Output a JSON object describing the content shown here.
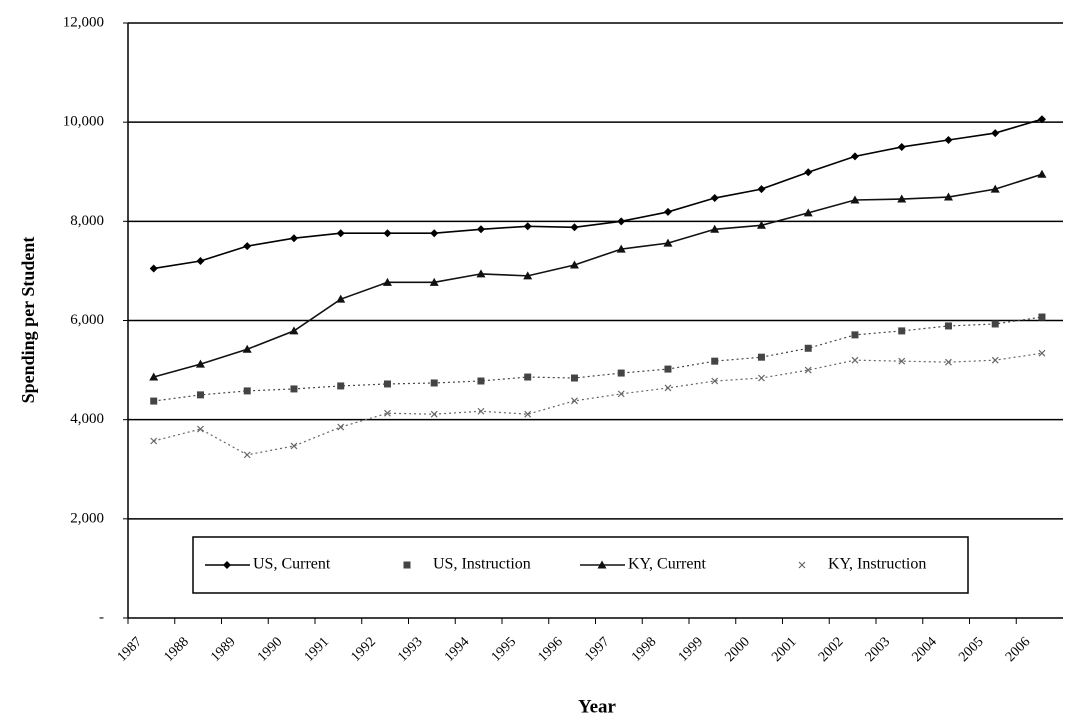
{
  "chart_data": {
    "type": "line",
    "x_label": "Year",
    "y_label": "Spending per Student",
    "categories": [
      "1987",
      "1988",
      "1989",
      "1990",
      "1991",
      "1992",
      "1993",
      "1994",
      "1995",
      "1996",
      "1997",
      "1998",
      "1999",
      "2000",
      "2001",
      "2002",
      "2003",
      "2004",
      "2005",
      "2006"
    ],
    "series": [
      {
        "name": "US, Current",
        "color": "#000000",
        "line": "solid",
        "marker": "diamond",
        "values": [
          7050,
          7200,
          7500,
          7660,
          7760,
          7760,
          7760,
          7840,
          7900,
          7880,
          8000,
          8190,
          8470,
          8650,
          8990,
          9310,
          9500,
          9640,
          9780,
          10060
        ]
      },
      {
        "name": "US, Instruction",
        "color": "#444444",
        "line": "dotted",
        "marker": "square",
        "values": [
          4375,
          4500,
          4580,
          4620,
          4680,
          4720,
          4740,
          4780,
          4860,
          4840,
          4940,
          5020,
          5180,
          5260,
          5440,
          5710,
          5790,
          5890,
          5930,
          6070
        ]
      },
      {
        "name": "KY, Current",
        "color": "#111111",
        "line": "solid",
        "marker": "triangle",
        "values": [
          4860,
          5120,
          5420,
          5790,
          6430,
          6770,
          6770,
          6940,
          6900,
          7120,
          7440,
          7560,
          7840,
          7920,
          8170,
          8430,
          8450,
          8490,
          8650,
          8950
        ]
      },
      {
        "name": "KY, Instruction",
        "color": "#666666",
        "line": "dotted",
        "marker": "x",
        "values": [
          3570,
          3810,
          3290,
          3470,
          3850,
          4130,
          4110,
          4170,
          4110,
          4380,
          4520,
          4640,
          4780,
          4840,
          5000,
          5200,
          5180,
          5160,
          5200,
          5340
        ]
      }
    ],
    "ylim": [
      0,
      12000
    ],
    "yticks": [
      {
        "value": 0,
        "label": "-"
      },
      {
        "value": 2000,
        "label": "2,000"
      },
      {
        "value": 4000,
        "label": "4,000"
      },
      {
        "value": 6000,
        "label": "6,000"
      },
      {
        "value": 8000,
        "label": "8,000"
      },
      {
        "value": 10000,
        "label": "10,000"
      },
      {
        "value": 12000,
        "label": "12,000"
      }
    ],
    "grid": true,
    "legend": "bottom"
  }
}
